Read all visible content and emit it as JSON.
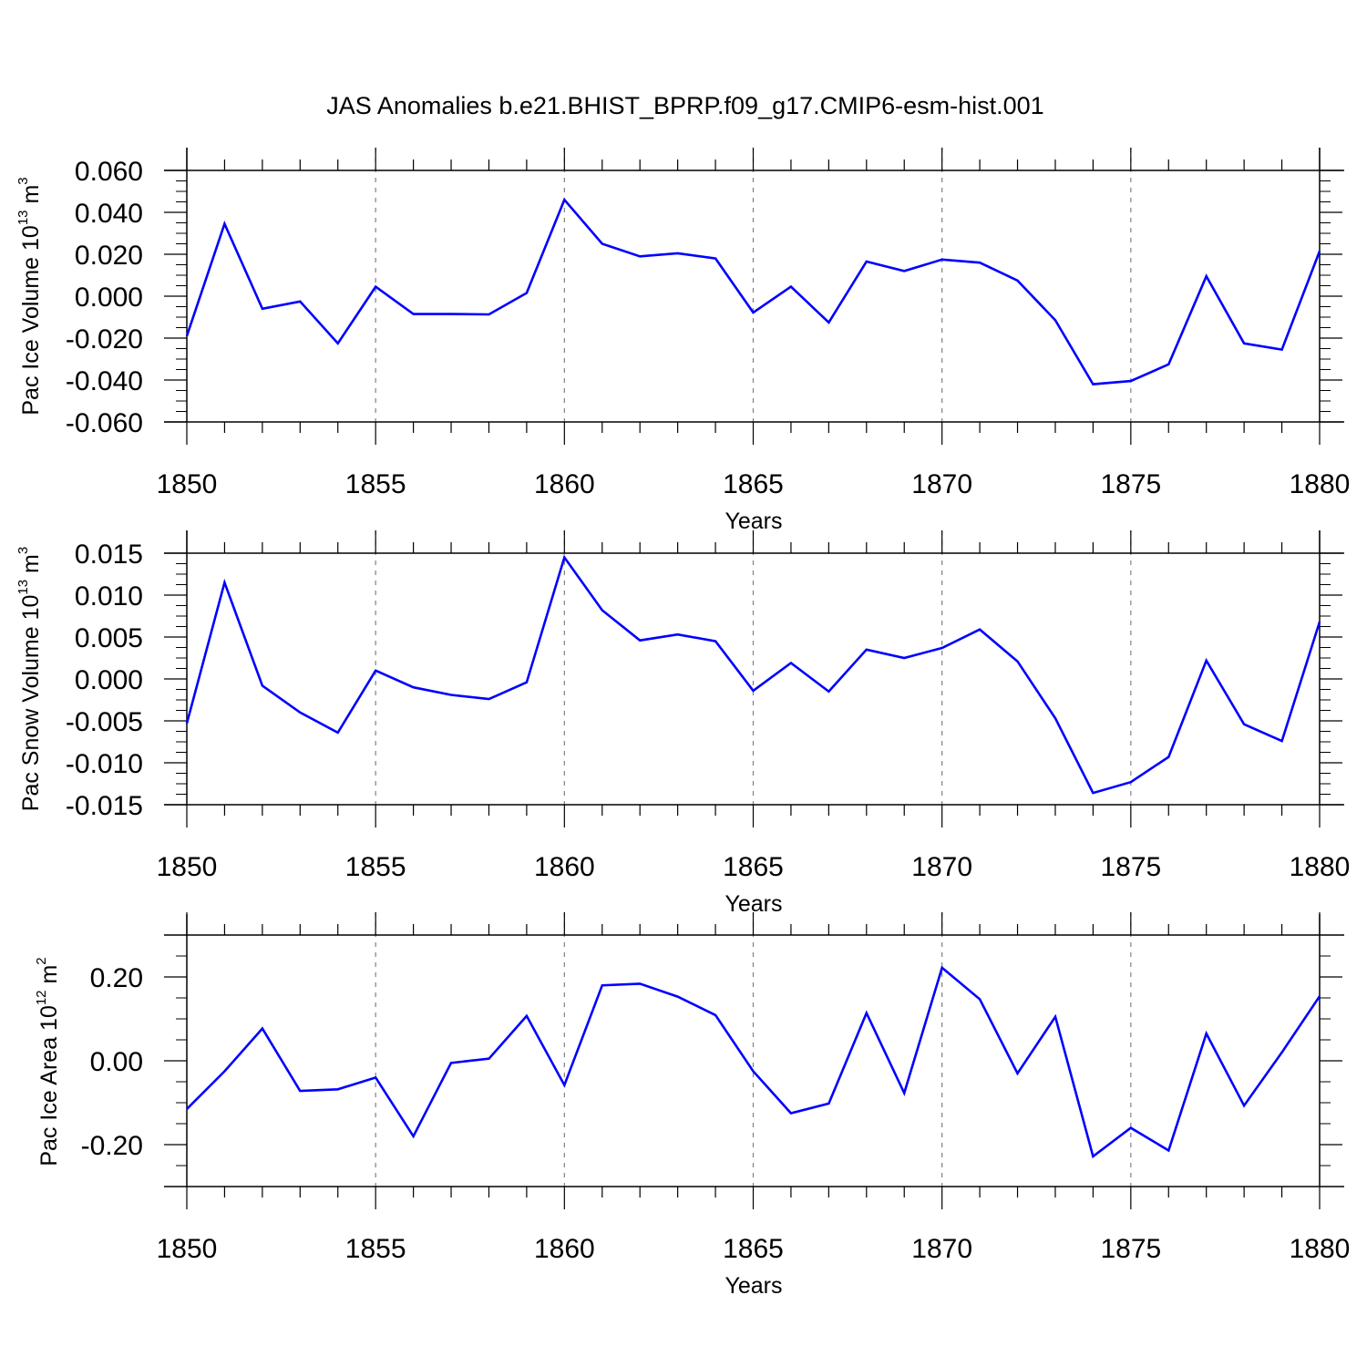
{
  "title": "JAS Anomalies b.e21.BHIST_BPRP.f09_g17.CMIP6-esm-hist.001",
  "colors": {
    "line": "#0000ff",
    "axis": "#000000",
    "grid": "#808080"
  },
  "chart_data": [
    {
      "type": "line",
      "ylabel": {
        "text": "Pac Ice Volume 10",
        "exponent": "13",
        "unit": " m",
        "unit_exponent": "3"
      },
      "xlabel": "Years",
      "xlim": [
        1850,
        1880
      ],
      "ylim": [
        -0.06,
        0.06
      ],
      "x_ticks": [
        1850,
        1855,
        1860,
        1865,
        1870,
        1875,
        1880
      ],
      "y_ticks": [
        "0.060",
        "0.040",
        "0.020",
        "0.000",
        "-0.020",
        "-0.040",
        "-0.060"
      ],
      "y_tick_values": [
        0.06,
        0.04,
        0.02,
        0.0,
        -0.02,
        -0.04,
        -0.06
      ],
      "y_minor_step": 0.005,
      "vertical_grid": "dashed",
      "x": [
        1850,
        1851,
        1852,
        1853,
        1854,
        1855,
        1856,
        1857,
        1858,
        1859,
        1860,
        1861,
        1862,
        1863,
        1864,
        1865,
        1866,
        1867,
        1868,
        1869,
        1870,
        1871,
        1872,
        1873,
        1874,
        1875,
        1876,
        1877,
        1878,
        1879,
        1880
      ],
      "values": [
        -0.019,
        0.0345,
        -0.006,
        -0.0025,
        -0.0225,
        0.0045,
        -0.0085,
        -0.0085,
        -0.0087,
        0.0015,
        0.046,
        0.025,
        0.019,
        0.0205,
        0.018,
        -0.0078,
        0.0045,
        -0.0125,
        0.0165,
        0.012,
        0.0175,
        0.016,
        0.0075,
        -0.0115,
        -0.042,
        -0.0405,
        -0.0325,
        0.0095,
        -0.0225,
        -0.0255,
        0.0215
      ]
    },
    {
      "type": "line",
      "ylabel": {
        "text": "Pac Snow Volume 10",
        "exponent": "13",
        "unit": " m",
        "unit_exponent": "3"
      },
      "xlabel": "Years",
      "xlim": [
        1850,
        1880
      ],
      "ylim": [
        -0.015,
        0.015
      ],
      "x_ticks": [
        1850,
        1855,
        1860,
        1865,
        1870,
        1875,
        1880
      ],
      "y_ticks": [
        "0.015",
        "0.010",
        "0.005",
        "0.000",
        "-0.005",
        "-0.010",
        "-0.015"
      ],
      "y_tick_values": [
        0.015,
        0.01,
        0.005,
        0.0,
        -0.005,
        -0.01,
        -0.015
      ],
      "y_minor_step": 0.00125,
      "vertical_grid": "dashed",
      "x": [
        1850,
        1851,
        1852,
        1853,
        1854,
        1855,
        1856,
        1857,
        1858,
        1859,
        1860,
        1861,
        1862,
        1863,
        1864,
        1865,
        1866,
        1867,
        1868,
        1869,
        1870,
        1871,
        1872,
        1873,
        1874,
        1875,
        1876,
        1877,
        1878,
        1879,
        1880
      ],
      "values": [
        -0.0053,
        0.0115,
        -0.0008,
        -0.004,
        -0.0064,
        0.001,
        -0.001,
        -0.0019,
        -0.0024,
        -0.0004,
        0.0145,
        0.0082,
        0.0046,
        0.0053,
        0.0045,
        -0.0014,
        0.0019,
        -0.0015,
        0.0035,
        0.0025,
        0.0037,
        0.0059,
        0.0021,
        -0.0047,
        -0.0136,
        -0.0123,
        -0.0093,
        0.0022,
        -0.0054,
        -0.0074,
        0.0068
      ]
    },
    {
      "type": "line",
      "ylabel": {
        "text": "Pac Ice Area 10",
        "exponent": "12",
        "unit": " m",
        "unit_exponent": "2"
      },
      "xlabel": "Years",
      "xlim": [
        1850,
        1880
      ],
      "ylim": [
        -0.3,
        0.3
      ],
      "x_ticks": [
        1850,
        1855,
        1860,
        1865,
        1870,
        1875,
        1880
      ],
      "y_ticks": [
        "0.20",
        "0.00",
        "-0.20"
      ],
      "y_tick_values": [
        0.2,
        0.0,
        -0.2
      ],
      "y_minor_step": 0.05,
      "vertical_grid": "dashed",
      "x": [
        1850,
        1851,
        1852,
        1853,
        1854,
        1855,
        1856,
        1857,
        1858,
        1859,
        1860,
        1861,
        1862,
        1863,
        1864,
        1865,
        1866,
        1867,
        1868,
        1869,
        1870,
        1871,
        1872,
        1873,
        1874,
        1875,
        1876,
        1877,
        1878,
        1879,
        1880
      ],
      "values": [
        -0.115,
        -0.025,
        0.077,
        -0.072,
        -0.068,
        -0.04,
        -0.18,
        -0.005,
        0.005,
        0.107,
        -0.058,
        0.18,
        0.184,
        0.153,
        0.109,
        -0.025,
        -0.125,
        -0.102,
        0.114,
        -0.077,
        0.222,
        0.147,
        -0.03,
        0.105,
        -0.228,
        -0.16,
        -0.214,
        0.065,
        -0.107,
        0.02,
        0.154
      ]
    }
  ]
}
